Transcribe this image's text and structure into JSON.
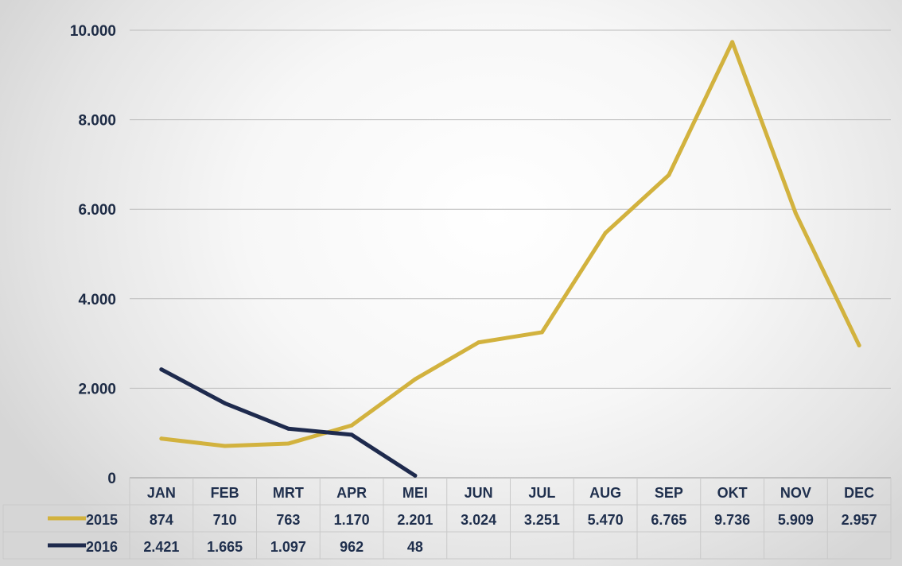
{
  "chart_data": {
    "type": "line",
    "categories": [
      "JAN",
      "FEB",
      "MRT",
      "APR",
      "MEI",
      "JUN",
      "JUL",
      "AUG",
      "SEP",
      "OKT",
      "NOV",
      "DEC"
    ],
    "series": [
      {
        "name": "2015",
        "color": "#d2b23e",
        "values": [
          874,
          710,
          763,
          1170,
          2201,
          3024,
          3251,
          5470,
          6765,
          9736,
          5909,
          2957
        ],
        "labels": [
          "874",
          "710",
          "763",
          "1.170",
          "2.201",
          "3.024",
          "3.251",
          "5.470",
          "6.765",
          "9.736",
          "5.909",
          "2.957"
        ]
      },
      {
        "name": "2016",
        "color": "#1e2a4d",
        "values": [
          2421,
          1665,
          1097,
          962,
          48,
          null,
          null,
          null,
          null,
          null,
          null,
          null
        ],
        "labels": [
          "2.421",
          "1.665",
          "1.097",
          "962",
          "48",
          "",
          "",
          "",
          "",
          "",
          "",
          ""
        ]
      }
    ],
    "y_ticks": [
      0,
      2000,
      4000,
      6000,
      8000,
      10000
    ],
    "y_tick_labels": [
      "0",
      "2.000",
      "4.000",
      "6.000",
      "8.000",
      "10.000"
    ],
    "ylim": [
      0,
      10000
    ],
    "grid": true,
    "legend": "data-table"
  }
}
